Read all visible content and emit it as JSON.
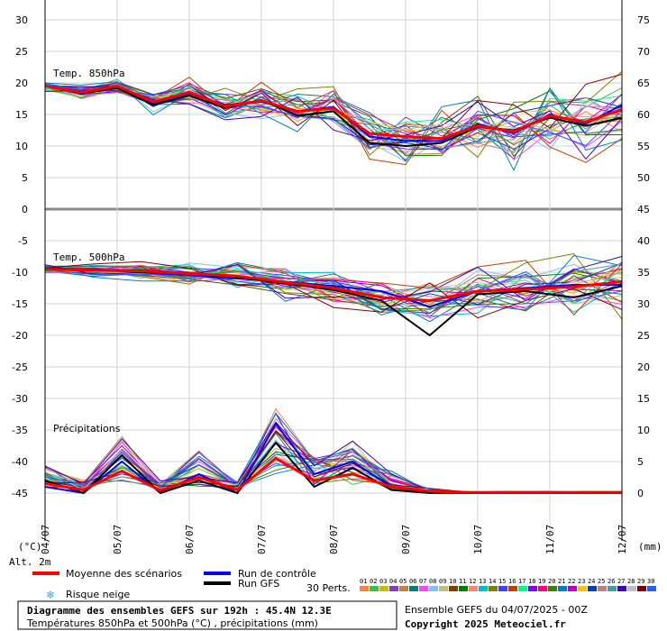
{
  "chart_data": {
    "type": "line",
    "title": "Diagramme des ensembles GEFS sur 192h : 45.4N 12.3E",
    "subtitle": "Températures 850hPa et 500hPa (°C) , précipitations (mm)",
    "panel_labels": {
      "t850": "Temp. 850hPa",
      "t500": "Temp. 500hPa",
      "precip": "Précipitations"
    },
    "left_axis": {
      "unit": "(°C)",
      "ticks": [
        30,
        25,
        20,
        15,
        10,
        5,
        0,
        -5,
        -10,
        -15,
        -20,
        -25,
        -30,
        -35,
        -40,
        -45
      ],
      "range": [
        -45,
        30
      ]
    },
    "right_axis": {
      "unit": "(mm)",
      "ticks": [
        75,
        70,
        65,
        60,
        55,
        50,
        45,
        40,
        35,
        30,
        25,
        20,
        15,
        10,
        5,
        0
      ]
    },
    "altitude_label": "Alt. 2m",
    "x_ticks": [
      "04/07",
      "05/07",
      "06/07",
      "07/07",
      "08/07",
      "09/07",
      "10/07",
      "11/07",
      "12/07"
    ],
    "series": [
      {
        "name": "Moyenne des scénarios",
        "color": "#ff0000",
        "t850": [
          19.5,
          18.5,
          19.5,
          17,
          18.5,
          16.3,
          17.2,
          15.5,
          16,
          12,
          11.5,
          11.2,
          13.2,
          12.3,
          14.8,
          13.8,
          15.8
        ],
        "t500": [
          -9.5,
          -9.7,
          -9.8,
          -10.2,
          -10.6,
          -11.6,
          -12.5,
          -14,
          -14.5,
          -13,
          -12.7,
          -12.3,
          -11.5
        ],
        "precip": [
          1.5,
          0.5,
          3.5,
          0.4,
          2.5,
          0.5,
          5.5,
          2,
          3,
          1,
          0.3,
          0.1,
          0.1,
          0.1,
          0.1,
          0.1
        ]
      },
      {
        "name": "Run de contrôle",
        "color": "#0000ff",
        "t850": [
          19.5,
          18.6,
          19.3,
          16.8,
          18.3,
          16.5,
          17,
          15.5,
          16.2,
          11.5,
          10.8,
          10.8,
          13.5,
          12,
          15,
          13.5,
          16.5
        ],
        "t500": [
          -9.6,
          -9.5,
          -10,
          -10.5,
          -11,
          -11.5,
          -12.2,
          -13,
          -15.5,
          -13,
          -12.5,
          -12,
          -12
        ],
        "precip": [
          1,
          0,
          5,
          0,
          3,
          0,
          11,
          3,
          5,
          1,
          0,
          0,
          0,
          0,
          0,
          0
        ]
      },
      {
        "name": "Run GFS",
        "color": "#000000",
        "t850": [
          19.5,
          18.3,
          19.2,
          16.5,
          18,
          16,
          17.3,
          14.8,
          15.5,
          10.5,
          10,
          10.5,
          13,
          12.5,
          14.5,
          13.2,
          14.5
        ],
        "t500": [
          -9.4,
          -9.6,
          -10,
          -10.2,
          -10.8,
          -11.8,
          -12.8,
          -14.5,
          -20,
          -13.5,
          -13,
          -14,
          -12.2
        ],
        "precip": [
          2,
          0,
          6,
          0,
          2,
          0,
          8,
          1,
          4,
          0.5,
          0,
          0,
          0,
          0,
          0,
          0
        ]
      }
    ],
    "perturbation_count": 30,
    "perturbation_count_label": "30 Perts.",
    "perturbation_numbers": [
      "01",
      "02",
      "03",
      "04",
      "05",
      "06",
      "07",
      "08",
      "09",
      "10",
      "11",
      "12",
      "13",
      "14",
      "15",
      "16",
      "17",
      "18",
      "19",
      "20",
      "21",
      "22",
      "23",
      "24",
      "25",
      "26",
      "27",
      "28",
      "29",
      "30"
    ],
    "perturbation_colors": [
      "#ff8040",
      "#40c040",
      "#c0c000",
      "#8040c0",
      "#c08040",
      "#008080",
      "#ff40ff",
      "#80c0ff",
      "#c0c080",
      "#804000",
      "#008000",
      "#ff8080",
      "#00c0c0",
      "#808000",
      "#4040ff",
      "#c04000",
      "#00ff80",
      "#8000ff",
      "#ff0080",
      "#408000",
      "#0080c0",
      "#c000c0",
      "#ffc000",
      "#0040c0",
      "#c08080",
      "#40a0a0",
      "#4000c0",
      "#c0c0c0",
      "#800000",
      "#2060ff"
    ],
    "legend": {
      "mean": "Moyenne des scénarios",
      "control": "Run de contrôle",
      "gfs": "Run GFS",
      "snow": "Risque neige",
      "snow_icon": "snowflake-icon"
    },
    "ensemble_info": "Ensemble GEFS du 04/07/2025 - 00Z",
    "copyright": "Copyright 2025 Meteociel.fr"
  }
}
